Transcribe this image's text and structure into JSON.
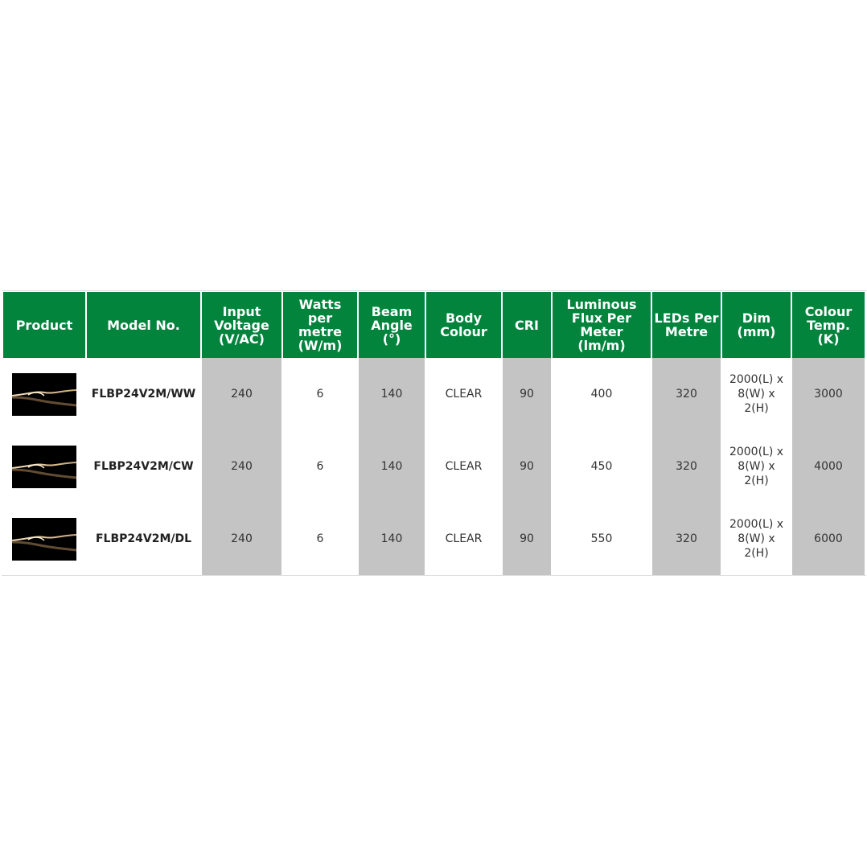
{
  "headers": [
    "Product",
    "Model No.",
    "Input Voltage (V/AC)",
    "Watts per metre (W/m)",
    "Beam Angle (°)",
    "Body Colour",
    "CRI",
    "Luminous Flux Per Meter (lm/m)",
    "LEDs Per Metre",
    "Dim (mm)",
    "Colour Temp. (K)"
  ],
  "colors": {
    "header_bg": "#02843d",
    "shaded_col": "#c4c4c4"
  },
  "rows": [
    {
      "image": "led-strip-photo",
      "model": "FLBP24V2M/WW",
      "voltage": "240",
      "watts": "6",
      "beam": "140",
      "body": "CLEAR",
      "cri": "90",
      "flux": "400",
      "leds": "320",
      "dim": "2000(L) x 8(W) x 2(H)",
      "temp": "3000"
    },
    {
      "image": "led-strip-photo",
      "model": "FLBP24V2M/CW",
      "voltage": "240",
      "watts": "6",
      "beam": "140",
      "body": "CLEAR",
      "cri": "90",
      "flux": "450",
      "leds": "320",
      "dim": "2000(L) x 8(W) x 2(H)",
      "temp": "4000"
    },
    {
      "image": "led-strip-photo",
      "model": "FLBP24V2M/DL",
      "voltage": "240",
      "watts": "6",
      "beam": "140",
      "body": "CLEAR",
      "cri": "90",
      "flux": "550",
      "leds": "320",
      "dim": "2000(L) x 8(W) x 2(H)",
      "temp": "6000"
    }
  ]
}
